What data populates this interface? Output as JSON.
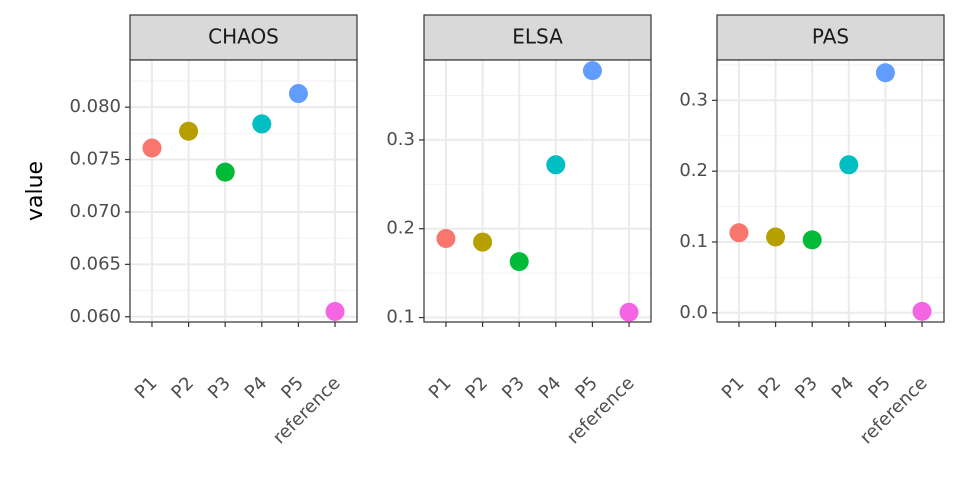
{
  "chart_data": {
    "type": "scatter",
    "ylabel": "value",
    "xlabel": "",
    "categories": [
      "P1",
      "P2",
      "P3",
      "P4",
      "P5",
      "reference"
    ],
    "colors": {
      "P1": "#F8766D",
      "P2": "#B79F00",
      "P3": "#00BA38",
      "P4": "#00BFC4",
      "P5": "#619CFF",
      "reference": "#F564E3"
    },
    "grid": true,
    "legend": "none",
    "panels": [
      {
        "title": "CHAOS",
        "ylim": [
          0.0595,
          0.0845
        ],
        "yticks": [
          0.06,
          0.065,
          0.07,
          0.075,
          0.08
        ],
        "yticklabels": [
          "0.060",
          "0.065",
          "0.070",
          "0.075",
          "0.080"
        ],
        "values": [
          0.0761,
          0.0777,
          0.0738,
          0.0784,
          0.0813,
          0.0605
        ]
      },
      {
        "title": "ELSA",
        "ylim": [
          0.095,
          0.39
        ],
        "yticks": [
          0.1,
          0.2,
          0.3
        ],
        "yticklabels": [
          "0.1",
          "0.2",
          "0.3"
        ],
        "values": [
          0.189,
          0.185,
          0.163,
          0.272,
          0.378,
          0.106
        ]
      },
      {
        "title": "PAS",
        "ylim": [
          -0.013,
          0.357
        ],
        "yticks": [
          0.0,
          0.1,
          0.2,
          0.3
        ],
        "yticklabels": [
          "0.0",
          "0.1",
          "0.2",
          "0.3"
        ],
        "values": [
          0.113,
          0.107,
          0.103,
          0.209,
          0.339,
          0.002
        ]
      }
    ]
  }
}
